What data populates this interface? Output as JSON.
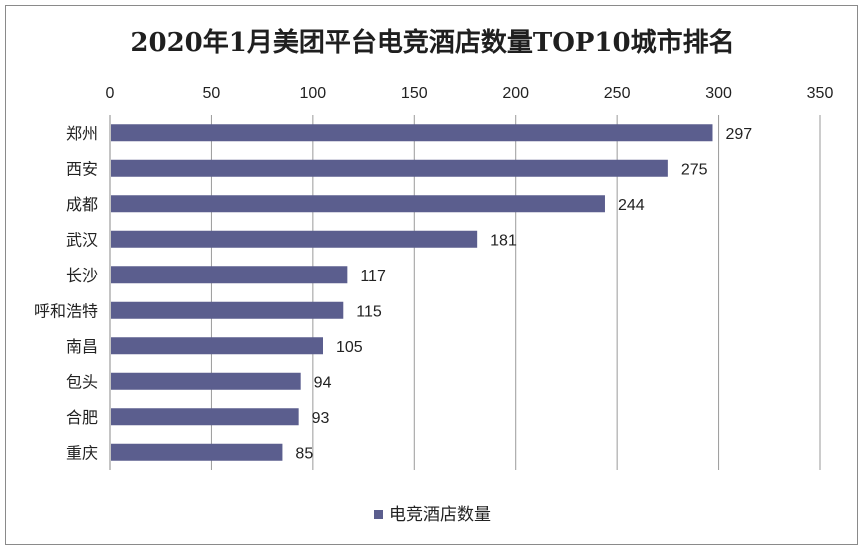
{
  "chart_data": {
    "type": "bar",
    "orientation": "horizontal",
    "title": "2020年1月美团平台电竞酒店数量TOP10城市排名",
    "categories": [
      "郑州",
      "西安",
      "成都",
      "武汉",
      "长沙",
      "呼和浩特",
      "南昌",
      "包头",
      "合肥",
      "重庆"
    ],
    "series": [
      {
        "name": "电竞酒店数量",
        "values": [
          297,
          275,
          244,
          181,
          117,
          115,
          105,
          94,
          93,
          85
        ]
      }
    ],
    "xlim": [
      0,
      350
    ],
    "xticks": [
      0,
      50,
      100,
      150,
      200,
      250,
      300,
      350
    ],
    "x_axis_position": "top",
    "grid": true,
    "legend_position": "bottom",
    "bar_color": "#5b5e8e",
    "data_labels": true
  }
}
